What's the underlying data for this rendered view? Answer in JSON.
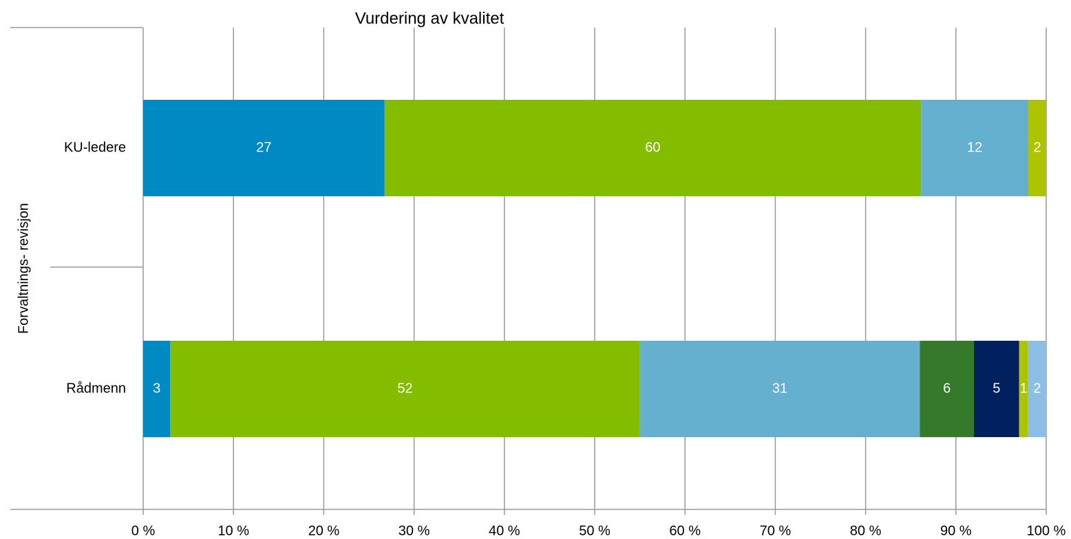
{
  "chart_data": {
    "type": "bar",
    "orientation": "horizontal",
    "stacked": "percent",
    "title": "Vurdering av kvalitet",
    "group_label": "Forvaltnings- revisjon",
    "categories": [
      "KU-ledere",
      "Rådmenn"
    ],
    "series": [
      {
        "color": "#008ac4",
        "values": [
          27,
          3
        ]
      },
      {
        "color": "#84bd00",
        "values": [
          60,
          52
        ]
      },
      {
        "color": "#65b0cf",
        "values": [
          12,
          31
        ]
      },
      {
        "color": "#347a2a",
        "values": [
          null,
          6
        ]
      },
      {
        "color": "#002060",
        "values": [
          null,
          5
        ]
      },
      {
        "color": "#afc400",
        "values": [
          2,
          1
        ]
      },
      {
        "color": "#8dbfe6",
        "values": [
          null,
          2
        ]
      }
    ],
    "xlim": [
      0,
      100
    ],
    "xticks": [
      {
        "value": 0,
        "label": "0 %"
      },
      {
        "value": 10,
        "label": "10 %"
      },
      {
        "value": 20,
        "label": "20 %"
      },
      {
        "value": 30,
        "label": "30 %"
      },
      {
        "value": 40,
        "label": "40 %"
      },
      {
        "value": 50,
        "label": "50 %"
      },
      {
        "value": 60,
        "label": "60 %"
      },
      {
        "value": 70,
        "label": "70 %"
      },
      {
        "value": 80,
        "label": "80 %"
      },
      {
        "value": 90,
        "label": "90 %"
      },
      {
        "value": 100,
        "label": "100 %"
      }
    ],
    "grid": true
  }
}
